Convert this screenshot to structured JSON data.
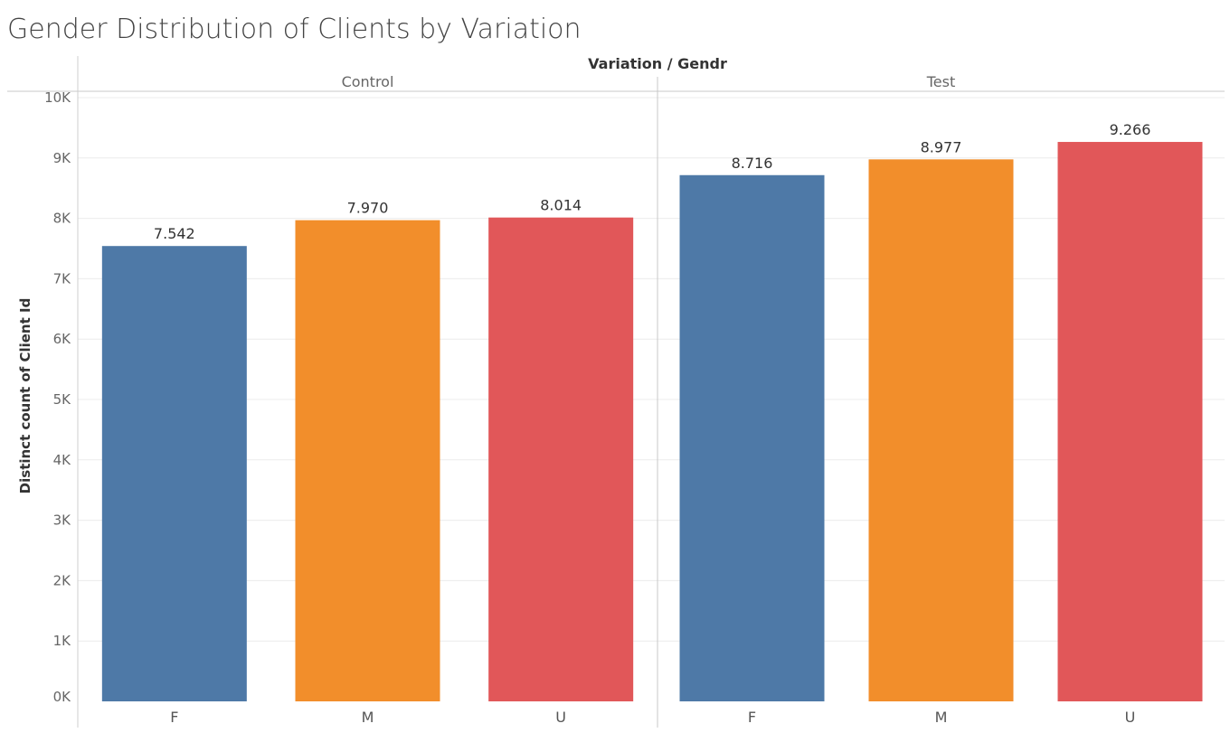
{
  "chart_data": {
    "type": "bar",
    "title": "Gender Distribution of Clients by Variation",
    "header_title": "Variation / Gendr",
    "ylabel": "Distinct count of Client Id",
    "xlabel": "",
    "ylim": [
      0,
      10000
    ],
    "y_ticks": [
      {
        "value": 0,
        "label": "0K"
      },
      {
        "value": 1000,
        "label": "1K"
      },
      {
        "value": 2000,
        "label": "2K"
      },
      {
        "value": 3000,
        "label": "3K"
      },
      {
        "value": 4000,
        "label": "4K"
      },
      {
        "value": 5000,
        "label": "5K"
      },
      {
        "value": 6000,
        "label": "6K"
      },
      {
        "value": 7000,
        "label": "7K"
      },
      {
        "value": 8000,
        "label": "8K"
      },
      {
        "value": 9000,
        "label": "9K"
      },
      {
        "value": 10000,
        "label": "10K"
      }
    ],
    "grid": true,
    "colors": {
      "F": "#4e79a7",
      "M": "#f28e2b",
      "U": "#e15759"
    },
    "groups": [
      {
        "name": "Control",
        "bars": [
          {
            "category": "F",
            "value": 7542,
            "label": "7.542"
          },
          {
            "category": "M",
            "value": 7970,
            "label": "7.970"
          },
          {
            "category": "U",
            "value": 8014,
            "label": "8.014"
          }
        ]
      },
      {
        "name": "Test",
        "bars": [
          {
            "category": "F",
            "value": 8716,
            "label": "8.716"
          },
          {
            "category": "M",
            "value": 8977,
            "label": "8.977"
          },
          {
            "category": "U",
            "value": 9266,
            "label": "9.266"
          }
        ]
      }
    ]
  }
}
